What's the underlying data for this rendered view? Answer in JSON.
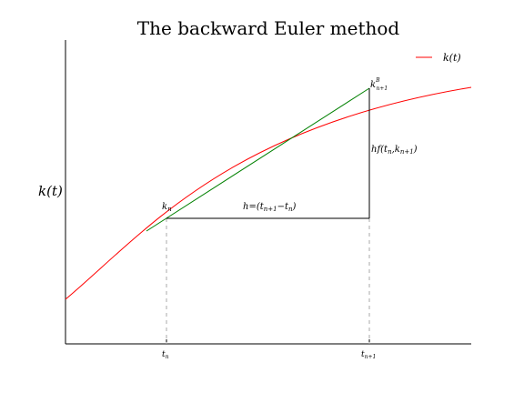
{
  "diagram": {
    "title": "The backward Euler method",
    "ylabel": "k(t)",
    "legend_label": "k(t)",
    "annotations": {
      "k_n": "k_n",
      "k_b": "k^B_{n+1}",
      "step": "h=(t_{n+1}−t_n)",
      "rise": "hf(t_n,k_{n+1})"
    },
    "ticks": {
      "t_n": "t_n",
      "t_n1": "t_{n+1}"
    },
    "colors": {
      "curve": "#ff0000",
      "tangent": "#008000",
      "steps": "#000000",
      "guides": "#aaaaaa"
    }
  }
}
